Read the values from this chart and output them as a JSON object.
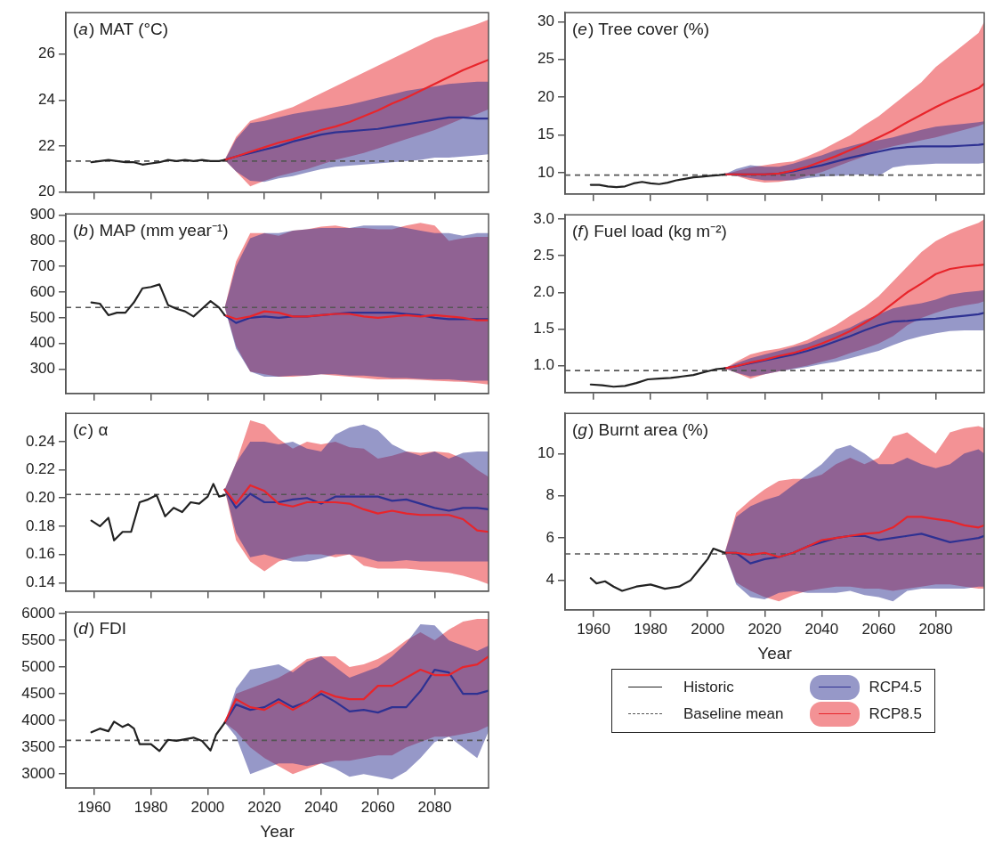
{
  "chart_data": [
    {
      "type": "line",
      "title": "(a) MAT (°C)",
      "x": [
        2006,
        2010,
        2015,
        2020,
        2025,
        2030,
        2035,
        2040,
        2045,
        2050,
        2055,
        2060,
        2065,
        2070,
        2075,
        2080,
        2085,
        2090,
        2095,
        2099
      ],
      "xlim": [
        1950,
        2099
      ],
      "xticks": [
        1960,
        1980,
        2000,
        2020,
        2040,
        2060,
        2080
      ],
      "ylim": [
        20,
        27.8
      ],
      "yticks": [
        20,
        22,
        24,
        26
      ],
      "tick_labels": "y",
      "ref_lines": [
        {
          "axis": "y",
          "value": 21.35,
          "color": "#555555",
          "line_style": "dashed"
        }
      ],
      "series": [
        {
          "color": "#222222",
          "x": [
            1959,
            1962,
            1965,
            1968,
            1971,
            1974,
            1977,
            1980,
            1983,
            1986,
            1989,
            1992,
            1995,
            1998,
            2001,
            2004,
            2006
          ],
          "values": [
            21.3,
            21.35,
            21.4,
            21.35,
            21.3,
            21.3,
            21.2,
            21.25,
            21.3,
            21.4,
            21.35,
            21.4,
            21.35,
            21.4,
            21.35,
            21.35,
            21.4
          ]
        },
        {
          "color": "#e8252b",
          "values": [
            21.4,
            21.55,
            21.75,
            21.95,
            22.15,
            22.3,
            22.5,
            22.7,
            22.85,
            23.05,
            23.3,
            23.55,
            23.85,
            24.1,
            24.4,
            24.7,
            25.0,
            25.3,
            25.55,
            25.75
          ],
          "lower": [
            21.4,
            20.9,
            20.25,
            20.5,
            20.7,
            20.85,
            21.0,
            21.2,
            21.4,
            21.55,
            21.7,
            21.9,
            22.1,
            22.3,
            22.5,
            22.7,
            22.95,
            23.2,
            23.4,
            23.6
          ],
          "upper": [
            21.4,
            22.4,
            23.1,
            23.3,
            23.5,
            23.7,
            24.0,
            24.3,
            24.6,
            24.9,
            25.2,
            25.5,
            25.8,
            26.1,
            26.4,
            26.7,
            26.9,
            27.1,
            27.3,
            27.5
          ]
        },
        {
          "color": "#2e3192",
          "values": [
            21.4,
            21.55,
            21.7,
            21.85,
            22.0,
            22.2,
            22.35,
            22.5,
            22.6,
            22.65,
            22.7,
            22.75,
            22.85,
            22.95,
            23.05,
            23.15,
            23.25,
            23.25,
            23.2,
            23.2
          ],
          "lower": [
            21.4,
            20.9,
            20.5,
            20.45,
            20.6,
            20.7,
            20.85,
            21.0,
            21.1,
            21.15,
            21.2,
            21.25,
            21.3,
            21.35,
            21.4,
            21.5,
            21.5,
            21.55,
            21.6,
            21.65
          ],
          "upper": [
            21.4,
            22.3,
            23.0,
            23.1,
            23.25,
            23.4,
            23.5,
            23.6,
            23.7,
            23.8,
            23.95,
            24.1,
            24.25,
            24.4,
            24.5,
            24.6,
            24.7,
            24.75,
            24.8,
            24.8
          ]
        }
      ]
    },
    {
      "type": "line",
      "title": "(b) MAP (mm year⁻¹)",
      "x": [
        2006,
        2010,
        2015,
        2020,
        2025,
        2030,
        2035,
        2040,
        2045,
        2050,
        2055,
        2060,
        2065,
        2070,
        2075,
        2080,
        2085,
        2090,
        2095,
        2099
      ],
      "xlim": [
        1950,
        2099
      ],
      "xticks": [
        1960,
        1980,
        2000,
        2020,
        2040,
        2060,
        2080
      ],
      "ylim": [
        205,
        905
      ],
      "yticks": [
        300,
        400,
        500,
        600,
        700,
        800,
        900
      ],
      "tick_labels": "y",
      "ref_lines": [
        {
          "axis": "y",
          "value": 540,
          "color": "#555555",
          "line_style": "dashed"
        }
      ],
      "series": [
        {
          "color": "#222222",
          "x": [
            1959,
            1962,
            1965,
            1968,
            1971,
            1974,
            1977,
            1980,
            1983,
            1986,
            1989,
            1992,
            1995,
            1998,
            2001,
            2004,
            2006
          ],
          "values": [
            560,
            555,
            510,
            520,
            520,
            560,
            615,
            620,
            630,
            550,
            535,
            525,
            505,
            535,
            565,
            540,
            510
          ]
        },
        {
          "color": "#e8252b",
          "values": [
            510,
            495,
            505,
            525,
            520,
            505,
            505,
            510,
            515,
            515,
            505,
            500,
            505,
            510,
            505,
            510,
            505,
            500,
            490,
            490
          ],
          "lower": [
            540,
            390,
            290,
            280,
            270,
            270,
            275,
            280,
            275,
            270,
            265,
            260,
            260,
            260,
            258,
            255,
            252,
            250,
            245,
            240
          ],
          "upper": [
            540,
            720,
            830,
            830,
            820,
            840,
            845,
            855,
            860,
            850,
            850,
            845,
            845,
            860,
            870,
            860,
            800,
            810,
            815,
            815
          ]
        },
        {
          "color": "#2e3192",
          "values": [
            510,
            480,
            500,
            505,
            500,
            505,
            505,
            510,
            515,
            520,
            520,
            520,
            520,
            515,
            510,
            500,
            495,
            495,
            495,
            495
          ],
          "lower": [
            540,
            380,
            290,
            270,
            270,
            275,
            275,
            280,
            280,
            275,
            275,
            270,
            265,
            265,
            262,
            260,
            260,
            255,
            255,
            255
          ],
          "upper": [
            540,
            700,
            810,
            830,
            830,
            840,
            845,
            850,
            850,
            850,
            860,
            860,
            860,
            850,
            840,
            830,
            830,
            820,
            830,
            830
          ]
        }
      ]
    },
    {
      "type": "line",
      "title": "(c) α",
      "x": [
        2006,
        2010,
        2015,
        2020,
        2025,
        2030,
        2035,
        2040,
        2045,
        2050,
        2055,
        2060,
        2065,
        2070,
        2075,
        2080,
        2085,
        2090,
        2095,
        2099
      ],
      "xlim": [
        1950,
        2099
      ],
      "xticks": [
        1960,
        1980,
        2000,
        2020,
        2040,
        2060,
        2080
      ],
      "ylim": [
        0.134,
        0.26
      ],
      "yticks": [
        0.14,
        0.16,
        0.18,
        {
          "value": 0.2,
          "label": "0.20"
        },
        0.22,
        0.24
      ],
      "tick_labels": "y",
      "ref_lines": [
        {
          "axis": "y",
          "value": 0.2025,
          "color": "#555555",
          "line_style": "dashed"
        }
      ],
      "series": [
        {
          "color": "#222222",
          "x": [
            1959,
            1962,
            1965,
            1967,
            1970,
            1973,
            1976,
            1979,
            1982,
            1985,
            1988,
            1991,
            1994,
            1997,
            2000,
            2002,
            2004,
            2006
          ],
          "values": [
            0.184,
            0.18,
            0.186,
            0.17,
            0.176,
            0.176,
            0.197,
            0.199,
            0.202,
            0.187,
            0.193,
            0.19,
            0.197,
            0.196,
            0.201,
            0.21,
            0.201,
            0.202
          ]
        },
        {
          "color": "#e8252b",
          "values": [
            0.206,
            0.196,
            0.209,
            0.205,
            0.196,
            0.194,
            0.197,
            0.197,
            0.197,
            0.196,
            0.192,
            0.189,
            0.191,
            0.189,
            0.188,
            0.188,
            0.188,
            0.185,
            0.177,
            0.176
          ],
          "lower": [
            0.206,
            0.17,
            0.155,
            0.148,
            0.155,
            0.158,
            0.16,
            0.16,
            0.158,
            0.16,
            0.152,
            0.15,
            0.15,
            0.15,
            0.149,
            0.148,
            0.147,
            0.145,
            0.142,
            0.139
          ],
          "upper": [
            0.206,
            0.225,
            0.255,
            0.252,
            0.242,
            0.235,
            0.24,
            0.238,
            0.24,
            0.236,
            0.235,
            0.228,
            0.23,
            0.233,
            0.232,
            0.233,
            0.232,
            0.228,
            0.22,
            0.215
          ]
        },
        {
          "color": "#2e3192",
          "values": [
            0.206,
            0.193,
            0.203,
            0.197,
            0.197,
            0.199,
            0.2,
            0.196,
            0.201,
            0.201,
            0.201,
            0.201,
            0.198,
            0.199,
            0.196,
            0.193,
            0.191,
            0.193,
            0.193,
            0.192
          ],
          "lower": [
            0.206,
            0.175,
            0.158,
            0.16,
            0.157,
            0.155,
            0.155,
            0.157,
            0.16,
            0.16,
            0.158,
            0.155,
            0.155,
            0.156,
            0.155,
            0.155,
            0.155,
            0.155,
            0.155,
            0.155
          ],
          "upper": [
            0.206,
            0.225,
            0.24,
            0.24,
            0.238,
            0.24,
            0.235,
            0.233,
            0.245,
            0.25,
            0.252,
            0.248,
            0.238,
            0.233,
            0.23,
            0.233,
            0.228,
            0.232,
            0.233,
            0.233
          ]
        }
      ]
    },
    {
      "type": "line",
      "title": "(d) FDI",
      "xlabel": "Year",
      "x": [
        2006,
        2010,
        2015,
        2020,
        2025,
        2030,
        2035,
        2040,
        2045,
        2050,
        2055,
        2060,
        2065,
        2070,
        2075,
        2080,
        2085,
        2090,
        2095,
        2099
      ],
      "xlim": [
        1950,
        2099
      ],
      "xticks": [
        1960,
        1980,
        2000,
        2020,
        2040,
        2060,
        2080
      ],
      "ylim": [
        2740,
        6030
      ],
      "yticks": [
        3000,
        3500,
        4000,
        4500,
        5000,
        5500,
        6000
      ],
      "ref_lines": [
        {
          "axis": "y",
          "value": 3630,
          "color": "#555555",
          "line_style": "dashed"
        }
      ],
      "series": [
        {
          "color": "#222222",
          "x": [
            1959,
            1962,
            1965,
            1967,
            1970,
            1972,
            1974,
            1976,
            1980,
            1983,
            1986,
            1989,
            1992,
            1995,
            1998,
            2001,
            2003,
            2006
          ],
          "values": [
            3780,
            3850,
            3800,
            3980,
            3880,
            3930,
            3850,
            3560,
            3560,
            3430,
            3640,
            3620,
            3650,
            3680,
            3620,
            3440,
            3740,
            3960
          ]
        },
        {
          "color": "#e8252b",
          "values": [
            3960,
            4400,
            4250,
            4200,
            4350,
            4200,
            4350,
            4550,
            4450,
            4400,
            4400,
            4650,
            4650,
            4800,
            4950,
            4850,
            4850,
            5000,
            5050,
            5200
          ],
          "lower": [
            3960,
            3800,
            3500,
            3300,
            3150,
            3000,
            3100,
            3200,
            3250,
            3250,
            3300,
            3350,
            3350,
            3500,
            3600,
            3700,
            3700,
            3750,
            3800,
            3900
          ],
          "upper": [
            3960,
            4500,
            4600,
            4700,
            4800,
            4950,
            5150,
            5200,
            5200,
            5000,
            5050,
            5150,
            5300,
            5500,
            5650,
            5500,
            5700,
            5850,
            5900,
            5900
          ]
        },
        {
          "color": "#2e3192",
          "values": [
            3960,
            4300,
            4200,
            4250,
            4400,
            4250,
            4350,
            4500,
            4350,
            4170,
            4200,
            4150,
            4250,
            4250,
            4550,
            4950,
            4900,
            4500,
            4500,
            4560
          ],
          "lower": [
            3960,
            3700,
            3000,
            3100,
            3200,
            3200,
            3150,
            3200,
            3100,
            2950,
            3000,
            2950,
            2900,
            3050,
            3300,
            3600,
            3700,
            3500,
            3300,
            3800
          ],
          "upper": [
            3960,
            4600,
            4950,
            5000,
            5050,
            4900,
            5100,
            5200,
            5000,
            4800,
            4900,
            5000,
            5200,
            5450,
            5800,
            5780,
            5500,
            5400,
            5300,
            5400
          ]
        }
      ]
    },
    {
      "type": "line",
      "title": "(e) Tree cover (%)",
      "x": [
        2006,
        2010,
        2015,
        2020,
        2025,
        2030,
        2035,
        2040,
        2045,
        2050,
        2055,
        2060,
        2065,
        2070,
        2075,
        2080,
        2085,
        2090,
        2095,
        2097
      ],
      "xlim": [
        1950,
        2097
      ],
      "xticks": [
        1960,
        1980,
        2000,
        2020,
        2040,
        2060,
        2080
      ],
      "ylim": [
        7.2,
        31.2
      ],
      "yticks": [
        10,
        15,
        20,
        25,
        30
      ],
      "tick_labels": "y",
      "ref_lines": [
        {
          "axis": "y",
          "value": 9.7,
          "color": "#555555",
          "line_style": "dashed"
        }
      ],
      "series": [
        {
          "color": "#222222",
          "x": [
            1959,
            1962,
            1965,
            1968,
            1971,
            1974,
            1977,
            1980,
            1983,
            1986,
            1989,
            1992,
            1995,
            1998,
            2001,
            2004,
            2006
          ],
          "values": [
            8.4,
            8.4,
            8.2,
            8.1,
            8.2,
            8.6,
            8.8,
            8.6,
            8.5,
            8.7,
            9.0,
            9.2,
            9.4,
            9.5,
            9.6,
            9.7,
            9.8
          ]
        },
        {
          "color": "#e8252b",
          "values": [
            9.8,
            9.8,
            9.8,
            9.8,
            9.9,
            10.3,
            10.8,
            11.5,
            12.2,
            13.0,
            13.8,
            14.7,
            15.6,
            16.7,
            17.7,
            18.7,
            19.6,
            20.4,
            21.2,
            21.8
          ],
          "lower": [
            9.8,
            9.6,
            9.0,
            8.7,
            8.8,
            9.1,
            9.6,
            10.1,
            10.8,
            11.5,
            12.2,
            13.0,
            13.5,
            13.9,
            14.3,
            14.7,
            15.2,
            15.7,
            16.2,
            16.5
          ],
          "upper": [
            9.8,
            10.2,
            10.7,
            11.0,
            11.3,
            11.5,
            12.2,
            13.0,
            14.0,
            15.0,
            16.3,
            17.5,
            19.0,
            20.5,
            22.0,
            24.0,
            25.5,
            27.0,
            28.5,
            30.0
          ]
        },
        {
          "color": "#2e3192",
          "values": [
            9.8,
            9.8,
            9.8,
            9.8,
            9.9,
            10.2,
            10.6,
            11.0,
            11.5,
            12.0,
            12.4,
            12.8,
            13.2,
            13.4,
            13.5,
            13.5,
            13.5,
            13.6,
            13.7,
            13.8
          ],
          "lower": [
            9.8,
            9.6,
            9.3,
            9.0,
            9.0,
            9.0,
            9.3,
            9.5,
            9.6,
            9.7,
            9.8,
            9.6,
            10.7,
            11.0,
            11.1,
            11.2,
            11.2,
            11.2,
            11.2,
            11.3
          ],
          "upper": [
            9.8,
            10.5,
            11.0,
            10.8,
            10.8,
            11.2,
            11.8,
            12.3,
            13.0,
            13.5,
            14.0,
            14.3,
            14.7,
            15.2,
            15.7,
            16.1,
            16.3,
            16.5,
            16.7,
            16.8
          ]
        }
      ]
    },
    {
      "type": "line",
      "title": "(f) Fuel load (kg m⁻²)",
      "x": [
        2006,
        2010,
        2015,
        2020,
        2025,
        2030,
        2035,
        2040,
        2045,
        2050,
        2055,
        2060,
        2065,
        2070,
        2075,
        2080,
        2085,
        2090,
        2095,
        2097
      ],
      "xlim": [
        1950,
        2097
      ],
      "xticks": [
        1960,
        1980,
        2000,
        2020,
        2040,
        2060,
        2080
      ],
      "ylim": [
        0.63,
        3.06
      ],
      "yticks": [
        {
          "value": 1,
          "label": "1.0"
        },
        1.5,
        {
          "value": 2,
          "label": "2.0"
        },
        2.5,
        {
          "value": 3,
          "label": "3.0"
        }
      ],
      "tick_labels": "y",
      "ref_lines": [
        {
          "axis": "y",
          "value": 0.93,
          "color": "#555555",
          "line_style": "dashed"
        }
      ],
      "series": [
        {
          "color": "#222222",
          "x": [
            1959,
            1963,
            1967,
            1971,
            1975,
            1979,
            1983,
            1987,
            1991,
            1995,
            1999,
            2003,
            2006
          ],
          "values": [
            0.74,
            0.73,
            0.71,
            0.72,
            0.76,
            0.81,
            0.82,
            0.83,
            0.85,
            0.87,
            0.91,
            0.95,
            0.96
          ]
        },
        {
          "color": "#e8252b",
          "values": [
            0.96,
            0.99,
            1.04,
            1.08,
            1.13,
            1.17,
            1.23,
            1.3,
            1.38,
            1.47,
            1.58,
            1.7,
            1.85,
            2.0,
            2.12,
            2.25,
            2.32,
            2.35,
            2.37,
            2.38
          ],
          "lower": [
            0.96,
            0.9,
            0.82,
            0.88,
            0.92,
            0.96,
            1.0,
            1.05,
            1.1,
            1.17,
            1.23,
            1.3,
            1.4,
            1.55,
            1.65,
            1.72,
            1.78,
            1.82,
            1.85,
            1.88
          ],
          "upper": [
            0.96,
            1.05,
            1.15,
            1.2,
            1.23,
            1.28,
            1.35,
            1.45,
            1.55,
            1.68,
            1.8,
            1.95,
            2.15,
            2.35,
            2.55,
            2.7,
            2.8,
            2.88,
            2.95,
            3.0
          ]
        },
        {
          "color": "#2e3192",
          "values": [
            0.96,
            0.99,
            1.03,
            1.07,
            1.11,
            1.15,
            1.2,
            1.26,
            1.33,
            1.4,
            1.48,
            1.55,
            1.6,
            1.61,
            1.63,
            1.64,
            1.66,
            1.68,
            1.7,
            1.72
          ],
          "lower": [
            0.96,
            0.9,
            0.85,
            0.88,
            0.92,
            0.95,
            0.98,
            1.02,
            1.05,
            1.1,
            1.15,
            1.2,
            1.28,
            1.35,
            1.4,
            1.44,
            1.47,
            1.48,
            1.48,
            1.48
          ],
          "upper": [
            0.96,
            1.03,
            1.1,
            1.15,
            1.2,
            1.25,
            1.3,
            1.38,
            1.45,
            1.52,
            1.62,
            1.7,
            1.78,
            1.82,
            1.85,
            1.9,
            1.97,
            2.0,
            2.02,
            2.03
          ]
        }
      ]
    },
    {
      "type": "line",
      "title": "(g) Burnt area (%)",
      "xlabel": "Year",
      "x": [
        2006,
        2010,
        2015,
        2020,
        2025,
        2030,
        2035,
        2040,
        2045,
        2050,
        2055,
        2060,
        2065,
        2070,
        2075,
        2080,
        2085,
        2090,
        2095,
        2097
      ],
      "xlim": [
        1950,
        2097
      ],
      "xticks": [
        1960,
        1980,
        2000,
        2020,
        2040,
        2060,
        2080
      ],
      "ylim": [
        2.6,
        11.9
      ],
      "yticks": [
        4,
        6,
        8,
        10
      ],
      "legend": "bottom",
      "ref_lines": [
        {
          "axis": "y",
          "value": 5.25,
          "label": "Baseline mean",
          "color": "#555555",
          "line_style": "dashed"
        }
      ],
      "series": [
        {
          "name": "Historic",
          "color": "#222222",
          "x": [
            1959,
            1961,
            1964,
            1967,
            1970,
            1975,
            1980,
            1985,
            1990,
            1994,
            1997,
            2000,
            2002,
            2004,
            2006
          ],
          "values": [
            4.1,
            3.85,
            3.95,
            3.7,
            3.5,
            3.7,
            3.8,
            3.6,
            3.7,
            4.0,
            4.5,
            5.0,
            5.5,
            5.4,
            5.3
          ]
        },
        {
          "name": "RCP8.5",
          "color": "#e8252b",
          "values": [
            5.3,
            5.3,
            5.2,
            5.3,
            5.1,
            5.3,
            5.6,
            5.9,
            6.0,
            6.1,
            6.2,
            6.25,
            6.5,
            7.0,
            7.0,
            6.9,
            6.8,
            6.6,
            6.5,
            6.6
          ],
          "lower": [
            5.3,
            3.9,
            3.5,
            3.2,
            3.0,
            3.3,
            3.5,
            3.6,
            3.7,
            3.7,
            3.6,
            3.6,
            3.5,
            3.6,
            3.7,
            3.8,
            3.8,
            3.7,
            3.6,
            3.6
          ],
          "upper": [
            5.3,
            7.2,
            7.8,
            8.3,
            8.7,
            8.8,
            8.8,
            9.0,
            9.5,
            9.8,
            9.5,
            9.8,
            10.8,
            11.0,
            10.5,
            10.0,
            11.0,
            11.2,
            11.3,
            11.2
          ]
        },
        {
          "name": "RCP4.5",
          "color": "#2e3192",
          "values": [
            5.3,
            5.3,
            4.8,
            5.0,
            5.1,
            5.3,
            5.6,
            5.8,
            6.0,
            6.1,
            6.1,
            5.9,
            6.0,
            6.1,
            6.2,
            6.0,
            5.8,
            5.9,
            6.0,
            6.1
          ],
          "lower": [
            5.3,
            3.8,
            3.2,
            3.1,
            3.4,
            3.5,
            3.4,
            3.4,
            3.4,
            3.5,
            3.3,
            3.2,
            3.0,
            3.5,
            3.6,
            3.6,
            3.6,
            3.6,
            3.7,
            3.7
          ],
          "upper": [
            5.3,
            7.0,
            7.5,
            7.8,
            8.0,
            8.5,
            9.0,
            9.5,
            10.2,
            10.4,
            10.0,
            9.5,
            9.5,
            9.8,
            9.5,
            9.3,
            9.5,
            10.0,
            10.2,
            10.0
          ]
        }
      ]
    }
  ]
}
